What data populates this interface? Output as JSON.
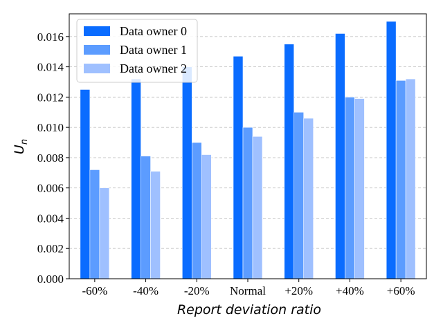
{
  "chart_data": {
    "type": "bar",
    "title": "",
    "xlabel": "Report deviation ratio",
    "ylabel": "U_n",
    "ylim": [
      0,
      0.0175
    ],
    "yticks": [
      "0.000",
      "0.002",
      "0.004",
      "0.006",
      "0.008",
      "0.010",
      "0.012",
      "0.014",
      "0.016"
    ],
    "grid": "y-dashed",
    "legend_position": "top-left",
    "categories": [
      "-60%",
      "-40%",
      "-20%",
      "Normal",
      "+20%",
      "+40%",
      "+60%"
    ],
    "series": [
      {
        "name": "Data owner 0",
        "color": "#0a6cff",
        "values": [
          0.0125,
          0.0132,
          0.014,
          0.0147,
          0.0155,
          0.0162,
          0.017
        ]
      },
      {
        "name": "Data owner 1",
        "color": "#5c9cff",
        "values": [
          0.0072,
          0.0081,
          0.009,
          0.01,
          0.011,
          0.012,
          0.0131
        ]
      },
      {
        "name": "Data owner 2",
        "color": "#9fc0ff",
        "values": [
          0.006,
          0.0071,
          0.0082,
          0.0094,
          0.0106,
          0.0119,
          0.0132
        ]
      }
    ]
  }
}
